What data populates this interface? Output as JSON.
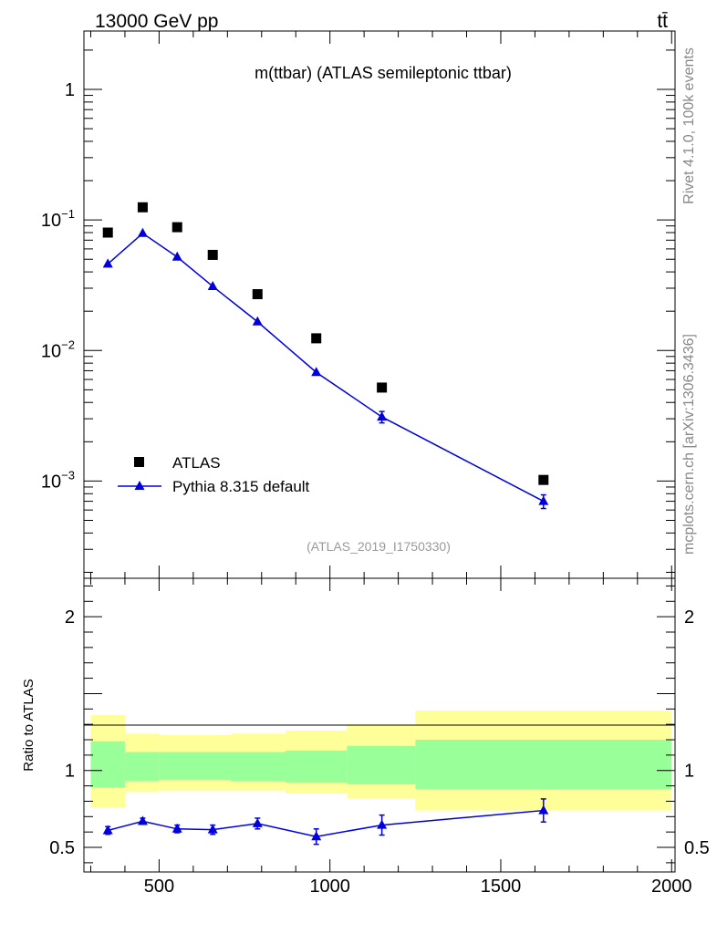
{
  "header": {
    "energy_label": "13000 GeV pp",
    "process_label": "tt̄"
  },
  "side_text": {
    "rivet": "Rivet 4.1.0,  100k events",
    "source": "mcplots.cern.ch [arXiv:1306.3436]"
  },
  "chart_data": [
    {
      "type": "scatter",
      "panel": "main",
      "title": "m(ttbar) (ATLAS semileptonic ttbar)",
      "analysis_id": "(ATLAS_2019_I1750330)",
      "yscale": "log",
      "xlim": [
        280,
        2010
      ],
      "ylim": [
        0.00018,
        2.8
      ],
      "x_ticks": [
        500,
        1000,
        1500,
        2000
      ],
      "y_ticks": [
        {
          "value": 1,
          "base": "1",
          "exp": ""
        },
        {
          "value": 0.1,
          "base": "10",
          "exp": "−1"
        },
        {
          "value": 0.01,
          "base": "10",
          "exp": "−2"
        },
        {
          "value": 0.001,
          "base": "10",
          "exp": "−3"
        }
      ],
      "legend": {
        "position": "bottom-left",
        "entries": [
          "ATLAS",
          "Pythia 8.315 default"
        ]
      },
      "series": [
        {
          "name": "ATLAS",
          "marker": "square",
          "color": "#000000",
          "x": [
            350,
            452,
            553,
            657,
            788,
            960,
            1152,
            1625
          ],
          "y": [
            0.08,
            0.125,
            0.088,
            0.054,
            0.027,
            0.0124,
            0.0052,
            0.00102
          ]
        },
        {
          "name": "Pythia 8.315 default",
          "marker": "triangle",
          "color": "#0000dd",
          "x": [
            350,
            452,
            553,
            657,
            788,
            960,
            1152,
            1625
          ],
          "y": [
            0.046,
            0.079,
            0.052,
            0.031,
            0.0166,
            0.0068,
            0.0031,
            0.0007
          ],
          "yerr_rel": [
            0.05,
            0.04,
            0.05,
            0.05,
            0.05,
            0.06,
            0.1,
            0.12
          ]
        }
      ]
    },
    {
      "type": "scatter",
      "panel": "ratio",
      "ylabel": "Ratio to ATLAS",
      "xlim": [
        280,
        2010
      ],
      "ylim": [
        0.34,
        2.25
      ],
      "x_ticks": [
        500,
        1000,
        1500,
        2000
      ],
      "y_ticks": [
        0.5,
        1,
        2
      ],
      "reference_line": 1,
      "bands": [
        {
          "x": [
            300,
            400
          ],
          "inner": [
            0.89,
            1.19
          ],
          "outer": [
            0.76,
            1.36
          ]
        },
        {
          "x": [
            400,
            500
          ],
          "inner": [
            0.93,
            1.12
          ],
          "outer": [
            0.86,
            1.24
          ]
        },
        {
          "x": [
            500,
            710
          ],
          "inner": [
            0.94,
            1.12
          ],
          "outer": [
            0.87,
            1.23
          ]
        },
        {
          "x": [
            710,
            870
          ],
          "inner": [
            0.93,
            1.12
          ],
          "outer": [
            0.87,
            1.24
          ]
        },
        {
          "x": [
            870,
            1050
          ],
          "inner": [
            0.92,
            1.13
          ],
          "outer": [
            0.85,
            1.26
          ]
        },
        {
          "x": [
            1050,
            1250
          ],
          "inner": [
            0.91,
            1.16
          ],
          "outer": [
            0.82,
            1.3
          ]
        },
        {
          "x": [
            1250,
            2000
          ],
          "inner": [
            0.88,
            1.2
          ],
          "outer": [
            0.74,
            1.39
          ]
        }
      ],
      "series": [
        {
          "name": "Pythia 8.315 default",
          "marker": "triangle",
          "color": "#0000dd",
          "x": [
            350,
            452,
            553,
            657,
            788,
            960,
            1152,
            1625
          ],
          "y": [
            0.61,
            0.67,
            0.62,
            0.615,
            0.655,
            0.57,
            0.645,
            0.74
          ],
          "yerr": [
            0.025,
            0.02,
            0.025,
            0.03,
            0.035,
            0.05,
            0.065,
            0.075
          ]
        }
      ]
    }
  ]
}
